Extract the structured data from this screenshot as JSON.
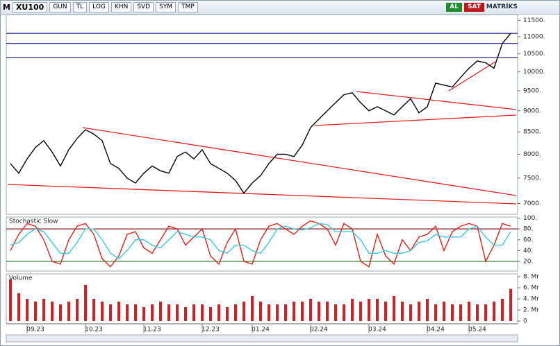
{
  "toolbar": {
    "symbol_prefix": "M",
    "symbol": "XU100",
    "buttons": [
      "GUN",
      "TL",
      "LOG",
      "KHN",
      "SVD",
      "SYM",
      "TMP"
    ],
    "buy": "AL",
    "sell": "SAT",
    "brand": "MATRİKS"
  },
  "chart_data": [
    {
      "type": "line",
      "log_scale": true,
      "ylim": [
        6800,
        11680
      ],
      "yticks": [
        {
          "value": 7000,
          "label": "7000."
        },
        {
          "value": 7500,
          "label": "7500."
        },
        {
          "value": 8000,
          "label": "8000."
        },
        {
          "value": 8500,
          "label": "8500."
        },
        {
          "value": 9000,
          "label": "9000."
        },
        {
          "value": 9500,
          "label": "9500."
        },
        {
          "value": 10000,
          "label": "10000."
        },
        {
          "value": 10500,
          "label": "10500."
        },
        {
          "value": 11000,
          "label": "11000."
        },
        {
          "value": 11500,
          "label": "11500."
        }
      ],
      "levels": [
        11100,
        10800,
        10400
      ],
      "level_color": "#1a1a8c",
      "series": [
        {
          "color": "#000000",
          "values": [
            7800,
            7600,
            7900,
            8150,
            8300,
            8050,
            7750,
            8100,
            8350,
            8550,
            8450,
            8300,
            7800,
            7700,
            7500,
            7400,
            7600,
            7750,
            7650,
            7600,
            7950,
            8050,
            7900,
            8100,
            7800,
            7700,
            7600,
            7450,
            7200,
            7400,
            7550,
            7800,
            8000,
            8000,
            7950,
            8200,
            8600,
            8800,
            9000,
            9200,
            9400,
            9450,
            9200,
            9000,
            9100,
            9000,
            8900,
            9100,
            9300,
            8950,
            9100,
            9700,
            9650,
            9600,
            9850,
            10100,
            10300,
            10250,
            10100,
            10800,
            11100
          ]
        }
      ]
    },
    {
      "type": "line",
      "title": "Stochastic Slow",
      "ylim": [
        2,
        102
      ],
      "yticks": [
        {
          "value": 20,
          "label": "20."
        },
        {
          "value": 40,
          "label": "40."
        },
        {
          "value": 60,
          "label": "60."
        },
        {
          "value": 80,
          "label": "80."
        },
        {
          "value": 100,
          "label": "100."
        }
      ],
      "hlines": [
        {
          "value": 80,
          "color": "#8b1a1a"
        },
        {
          "value": 20,
          "color": "#1a7a1a"
        }
      ],
      "series": [
        {
          "color": "#e0201a",
          "values": [
            40,
            70,
            90,
            85,
            60,
            20,
            15,
            60,
            85,
            90,
            70,
            25,
            10,
            30,
            70,
            75,
            45,
            35,
            60,
            85,
            80,
            50,
            65,
            80,
            30,
            15,
            55,
            80,
            20,
            15,
            60,
            85,
            90,
            80,
            70,
            85,
            95,
            90,
            80,
            50,
            90,
            80,
            20,
            10,
            70,
            30,
            15,
            60,
            40,
            65,
            70,
            85,
            40,
            75,
            85,
            90,
            85,
            20,
            50,
            90,
            85
          ]
        },
        {
          "color": "#3cc8e0",
          "values": [
            50,
            55,
            70,
            80,
            75,
            55,
            35,
            35,
            55,
            80,
            80,
            60,
            35,
            25,
            40,
            60,
            60,
            50,
            45,
            60,
            75,
            70,
            65,
            65,
            60,
            40,
            35,
            50,
            50,
            40,
            35,
            55,
            80,
            85,
            80,
            78,
            82,
            90,
            88,
            75,
            75,
            75,
            60,
            35,
            35,
            40,
            35,
            35,
            40,
            55,
            58,
            70,
            65,
            65,
            65,
            80,
            85,
            65,
            50,
            50,
            75
          ]
        }
      ]
    },
    {
      "type": "bar",
      "title": "Volume",
      "ylim": [
        -0.5,
        8.5
      ],
      "yticks": [
        {
          "value": 0,
          "label": "0"
        },
        {
          "value": 2,
          "label": "2. Mr"
        },
        {
          "value": 4,
          "label": "4. Mr"
        },
        {
          "value": 6,
          "label": "6. Mr"
        },
        {
          "value": 8,
          "label": "8. Mr"
        }
      ],
      "categories": [
        null,
        null,
        null,
        "09.23",
        null,
        null,
        null,
        null,
        null,
        null,
        "10.23",
        null,
        null,
        null,
        null,
        null,
        null,
        "11.23",
        null,
        null,
        null,
        null,
        null,
        null,
        "12.23",
        null,
        null,
        null,
        null,
        null,
        "01.24",
        null,
        null,
        null,
        null,
        null,
        null,
        "02.24",
        null,
        null,
        null,
        null,
        null,
        null,
        "03.24",
        null,
        null,
        null,
        null,
        null,
        null,
        "04.24",
        null,
        null,
        null,
        null,
        "05.24",
        null,
        null,
        null,
        null
      ],
      "color": "#d42020",
      "values": [
        7.5,
        5,
        4,
        3.5,
        4,
        3.5,
        3,
        3.5,
        4,
        6.5,
        4,
        3.5,
        3,
        3.5,
        3,
        3,
        2.5,
        3,
        3.5,
        3,
        3,
        2.5,
        3,
        3,
        2.5,
        3,
        2.5,
        3,
        3.5,
        4.5,
        3.5,
        3,
        3,
        3,
        3.5,
        3.5,
        4,
        3.5,
        3.5,
        3,
        3,
        4,
        3.5,
        4,
        4,
        3.5,
        4.5,
        3.5,
        3,
        3.5,
        4,
        3,
        3.5,
        3,
        3,
        3.5,
        3,
        3,
        3.5,
        4,
        5.8
      ]
    }
  ]
}
